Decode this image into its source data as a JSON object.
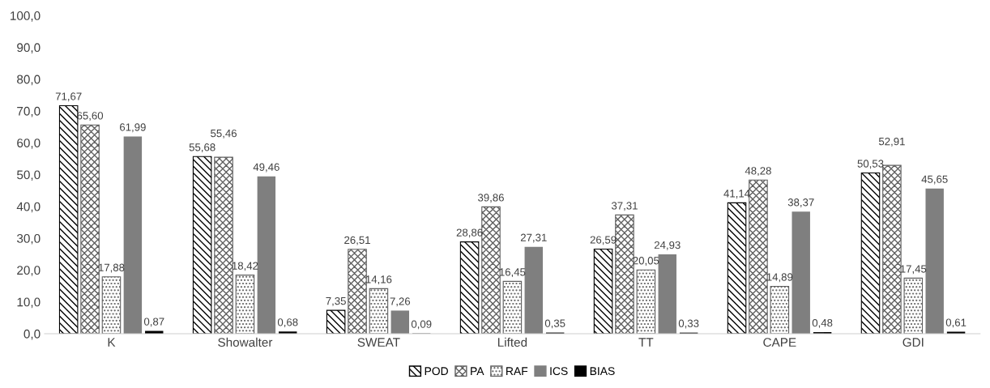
{
  "chart_data": {
    "type": "bar",
    "categories": [
      "K",
      "Showalter",
      "SWEAT",
      "Lifted",
      "TT",
      "CAPE",
      "GDI"
    ],
    "series": [
      {
        "name": "POD",
        "color": "#000000",
        "values": [
          71.67,
          55.68,
          7.35,
          28.86,
          26.59,
          41.14,
          50.53
        ],
        "value_labels": [
          "71,67",
          "55,68",
          "7,35",
          "28,86",
          "26,59",
          "41,14",
          "50,53"
        ]
      },
      {
        "name": "PA",
        "color": "#606060",
        "values": [
          65.6,
          55.46,
          26.51,
          39.86,
          37.31,
          48.28,
          52.91
        ],
        "value_labels": [
          "65,60",
          "55,46",
          "26,51",
          "39,86",
          "37,31",
          "48,28",
          "52,91"
        ]
      },
      {
        "name": "RAF",
        "color": "#606060",
        "values": [
          17.88,
          18.42,
          14.16,
          16.45,
          20.05,
          14.89,
          17.45
        ],
        "value_labels": [
          "17,88",
          "18,42",
          "14,16",
          "16,45",
          "20,05",
          "14,89",
          "17,45"
        ]
      },
      {
        "name": "ICS",
        "color": "#7f7f7f",
        "values": [
          61.99,
          49.46,
          7.26,
          27.31,
          24.93,
          38.37,
          45.65
        ],
        "value_labels": [
          "61,99",
          "49,46",
          "7,26",
          "27,31",
          "24,93",
          "38,37",
          "45,65"
        ]
      },
      {
        "name": "BIAS",
        "color": "#000000",
        "values": [
          0.87,
          0.68,
          0.09,
          0.35,
          0.33,
          0.48,
          0.61
        ],
        "value_labels": [
          "0,87",
          "0,68",
          "0,09",
          "0,35",
          "0,33",
          "0,48",
          "0,61"
        ]
      }
    ],
    "ylim": [
      0,
      100
    ],
    "yticks": [
      {
        "value": 0,
        "label": "0,0"
      },
      {
        "value": 10,
        "label": "10,0"
      },
      {
        "value": 20,
        "label": "20,0"
      },
      {
        "value": 30,
        "label": "30,0"
      },
      {
        "value": 40,
        "label": "40,0"
      },
      {
        "value": 50,
        "label": "50,0"
      },
      {
        "value": 60,
        "label": "60,0"
      },
      {
        "value": 70,
        "label": "70,0"
      },
      {
        "value": 80,
        "label": "80,0"
      },
      {
        "value": 90,
        "label": "90,0"
      },
      {
        "value": 100,
        "label": "100,0"
      }
    ],
    "grid": false,
    "legend": "bottom"
  }
}
